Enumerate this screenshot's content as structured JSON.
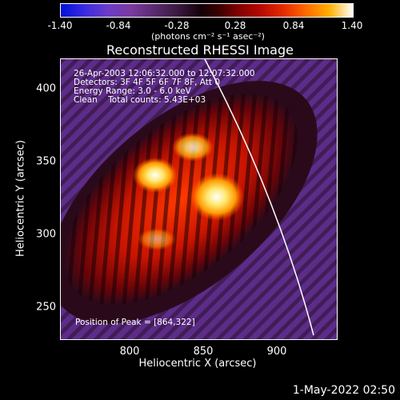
{
  "colorbar": {
    "ticks": [
      "-1.40",
      "-0.84",
      "-0.28",
      "0.28",
      "0.84",
      "1.40"
    ],
    "units": "(photons cm⁻² s⁻¹ asec⁻²)"
  },
  "plot": {
    "title": "Reconstructed RHESSI Image",
    "annotations": {
      "time": "26-Apr-2003 12:06:32.000 to 12:07:32.000",
      "detectors": "Detectors: 3F 4F 5F 6F 7F 8F, Att 0",
      "energy": "Energy Range: 3.0 - 6.0 keV",
      "clean": "Clean    Total counts: 5.43E+03",
      "peak": "Position of Peak = [864,322]"
    },
    "xlabel": "Heliocentric X (arcsec)",
    "ylabel": "Heliocentric Y (arcsec)",
    "xticks": [
      "800",
      "850",
      "900"
    ],
    "yticks": [
      "400",
      "350",
      "300",
      "250"
    ]
  },
  "footer": {
    "date": "1-May-2022 02:50"
  },
  "colors": {
    "background": "#000000",
    "axis": "#ffffff",
    "limb_line": "#ffffff"
  }
}
